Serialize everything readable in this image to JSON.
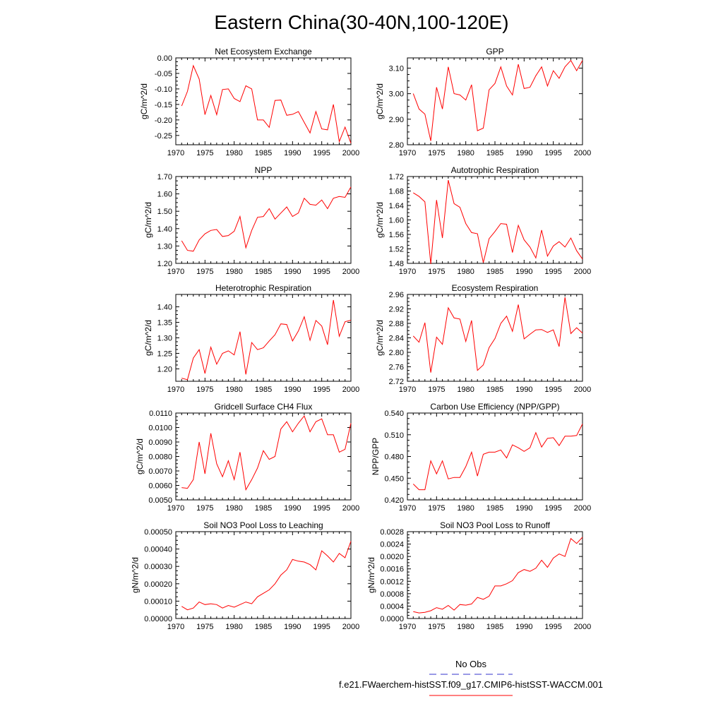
{
  "figure": {
    "title": "Eastern China(30-40N,100-120E)",
    "line_color": "#ff0000",
    "obs_color": "#3333cc",
    "legend": [
      {
        "label": "No Obs",
        "style": "dashed",
        "color": "#3333cc"
      },
      {
        "label": "f.e21.FWaerchem-histSST.f09_g17.CMIP6-histSST-WACCM.001",
        "style": "solid",
        "color": "#ff0000"
      }
    ]
  },
  "chart_data": [
    {
      "type": "line",
      "title": "Net Ecosystem Exchange",
      "ylabel": "gC/m^2/d",
      "xlim": [
        1970,
        2000
      ],
      "ylim": [
        -0.28,
        0.0
      ],
      "xticks": [
        1970,
        1975,
        1980,
        1985,
        1990,
        1995,
        2000
      ],
      "xtick_labels": [
        "1970",
        "1975",
        "1980",
        "1985",
        "1990",
        "1995",
        "2000"
      ],
      "yticks": [
        0.0,
        -0.05,
        -0.1,
        -0.15,
        -0.2,
        -0.25
      ],
      "ytick_labels": [
        "0.00",
        "-0.05",
        "-0.10",
        "-0.15",
        "-0.20",
        "-0.25"
      ],
      "x": [
        1971,
        1972,
        1973,
        1974,
        1975,
        1976,
        1977,
        1978,
        1979,
        1980,
        1981,
        1982,
        1983,
        1984,
        1985,
        1986,
        1987,
        1988,
        1989,
        1990,
        1991,
        1992,
        1993,
        1994,
        1995,
        1996,
        1997,
        1998,
        1999,
        2000
      ],
      "series": [
        {
          "values": [
            -0.155,
            -0.108,
            -0.025,
            -0.068,
            -0.183,
            -0.121,
            -0.183,
            -0.102,
            -0.1,
            -0.131,
            -0.141,
            -0.09,
            -0.1,
            -0.2,
            -0.2,
            -0.224,
            -0.137,
            -0.136,
            -0.185,
            -0.182,
            -0.173,
            -0.208,
            -0.242,
            -0.173,
            -0.229,
            -0.232,
            -0.15,
            -0.27,
            -0.223,
            -0.275
          ]
        }
      ]
    },
    {
      "type": "line",
      "title": "GPP",
      "ylabel": "gC/m^2/d",
      "xlim": [
        1970,
        2000
      ],
      "ylim": [
        2.8,
        3.14
      ],
      "xticks": [
        1970,
        1975,
        1980,
        1985,
        1990,
        1995,
        2000
      ],
      "xtick_labels": [
        "1970",
        "1975",
        "1980",
        "1985",
        "1990",
        "1995",
        "2000"
      ],
      "yticks": [
        2.8,
        2.9,
        3.0,
        3.1
      ],
      "ytick_labels": [
        "2.80",
        "2.90",
        "3.00",
        "3.10"
      ],
      "x": [
        1971,
        1972,
        1973,
        1974,
        1975,
        1976,
        1977,
        1978,
        1979,
        1980,
        1981,
        1982,
        1983,
        1984,
        1985,
        1986,
        1987,
        1988,
        1989,
        1990,
        1991,
        1992,
        1993,
        1994,
        1995,
        1996,
        1997,
        1998,
        1999,
        2000
      ],
      "series": [
        {
          "values": [
            3.0,
            2.94,
            2.92,
            2.815,
            3.025,
            2.94,
            3.105,
            3.0,
            2.995,
            2.975,
            3.035,
            2.855,
            2.865,
            3.015,
            3.04,
            3.105,
            3.03,
            2.995,
            3.115,
            3.02,
            3.025,
            3.07,
            3.105,
            3.03,
            3.09,
            3.06,
            3.105,
            3.13,
            3.09,
            3.13
          ]
        }
      ]
    },
    {
      "type": "line",
      "title": "NPP",
      "ylabel": "gC/m^2/d",
      "xlim": [
        1970,
        2000
      ],
      "ylim": [
        1.2,
        1.7
      ],
      "xticks": [
        1970,
        1975,
        1980,
        1985,
        1990,
        1995,
        2000
      ],
      "xtick_labels": [
        "1970",
        "1975",
        "1980",
        "1985",
        "1990",
        "1995",
        "2000"
      ],
      "yticks": [
        1.2,
        1.3,
        1.4,
        1.5,
        1.6,
        1.7
      ],
      "ytick_labels": [
        "1.20",
        "1.30",
        "1.40",
        "1.50",
        "1.60",
        "1.70"
      ],
      "x": [
        1971,
        1972,
        1973,
        1974,
        1975,
        1976,
        1977,
        1978,
        1979,
        1980,
        1981,
        1982,
        1983,
        1984,
        1985,
        1986,
        1987,
        1988,
        1989,
        1990,
        1991,
        1992,
        1993,
        1994,
        1995,
        1996,
        1997,
        1998,
        1999,
        2000
      ],
      "series": [
        {
          "values": [
            1.33,
            1.275,
            1.27,
            1.335,
            1.37,
            1.39,
            1.395,
            1.355,
            1.36,
            1.385,
            1.47,
            1.29,
            1.39,
            1.465,
            1.47,
            1.515,
            1.455,
            1.49,
            1.525,
            1.47,
            1.49,
            1.575,
            1.54,
            1.535,
            1.565,
            1.515,
            1.575,
            1.585,
            1.58,
            1.64
          ]
        }
      ]
    },
    {
      "type": "line",
      "title": "Autotrophic Respiration",
      "ylabel": "gC/m^2/d",
      "xlim": [
        1970,
        2000
      ],
      "ylim": [
        1.48,
        1.72
      ],
      "xticks": [
        1970,
        1975,
        1980,
        1985,
        1990,
        1995,
        2000
      ],
      "xtick_labels": [
        "1970",
        "1975",
        "1980",
        "1985",
        "1990",
        "1995",
        "2000"
      ],
      "yticks": [
        1.48,
        1.52,
        1.56,
        1.6,
        1.64,
        1.68,
        1.72
      ],
      "ytick_labels": [
        "1.48",
        "1.52",
        "1.56",
        "1.60",
        "1.64",
        "1.68",
        "1.72"
      ],
      "x": [
        1971,
        1972,
        1973,
        1974,
        1975,
        1976,
        1977,
        1978,
        1979,
        1980,
        1981,
        1982,
        1983,
        1984,
        1985,
        1986,
        1987,
        1988,
        1989,
        1990,
        1991,
        1992,
        1993,
        1994,
        1995,
        1996,
        1997,
        1998,
        1999,
        2000
      ],
      "series": [
        {
          "values": [
            1.675,
            1.665,
            1.65,
            1.478,
            1.655,
            1.55,
            1.71,
            1.645,
            1.635,
            1.59,
            1.565,
            1.562,
            1.482,
            1.548,
            1.568,
            1.59,
            1.588,
            1.51,
            1.585,
            1.545,
            1.525,
            1.495,
            1.572,
            1.5,
            1.528,
            1.54,
            1.525,
            1.55,
            1.515,
            1.492
          ]
        }
      ]
    },
    {
      "type": "line",
      "title": "Heterotrophic Respiration",
      "ylabel": "gC/m^2/d",
      "xlim": [
        1970,
        2000
      ],
      "ylim": [
        1.16,
        1.44
      ],
      "xticks": [
        1970,
        1975,
        1980,
        1985,
        1990,
        1995,
        2000
      ],
      "xtick_labels": [
        "1970",
        "1975",
        "1980",
        "1985",
        "1990",
        "1995",
        "2000"
      ],
      "yticks": [
        1.2,
        1.25,
        1.3,
        1.35,
        1.4
      ],
      "ytick_labels": [
        "1.20",
        "1.25",
        "1.30",
        "1.35",
        "1.40"
      ],
      "x": [
        1971,
        1972,
        1973,
        1974,
        1975,
        1976,
        1977,
        1978,
        1979,
        1980,
        1981,
        1982,
        1983,
        1984,
        1985,
        1986,
        1987,
        1988,
        1989,
        1990,
        1991,
        1992,
        1993,
        1994,
        1995,
        1996,
        1997,
        1998,
        1999,
        2000
      ],
      "series": [
        {
          "values": [
            1.17,
            1.165,
            1.235,
            1.262,
            1.185,
            1.27,
            1.215,
            1.25,
            1.258,
            1.245,
            1.32,
            1.182,
            1.285,
            1.262,
            1.268,
            1.29,
            1.31,
            1.345,
            1.343,
            1.29,
            1.322,
            1.368,
            1.292,
            1.356,
            1.338,
            1.278,
            1.422,
            1.305,
            1.352,
            1.357
          ]
        }
      ]
    },
    {
      "type": "line",
      "title": "Ecosystem Respiration",
      "ylabel": "gC/m^2/d",
      "xlim": [
        1970,
        2000
      ],
      "ylim": [
        2.72,
        2.96
      ],
      "xticks": [
        1970,
        1975,
        1980,
        1985,
        1990,
        1995,
        2000
      ],
      "xtick_labels": [
        "1970",
        "1975",
        "1980",
        "1985",
        "1990",
        "1995",
        "2000"
      ],
      "yticks": [
        2.72,
        2.76,
        2.8,
        2.84,
        2.88,
        2.92,
        2.96
      ],
      "ytick_labels": [
        "2.72",
        "2.76",
        "2.80",
        "2.84",
        "2.88",
        "2.92",
        "2.96"
      ],
      "x": [
        1971,
        1972,
        1973,
        1974,
        1975,
        1976,
        1977,
        1978,
        1979,
        1980,
        1981,
        1982,
        1983,
        1984,
        1985,
        1986,
        1987,
        1988,
        1989,
        1990,
        1991,
        1992,
        1993,
        1994,
        1995,
        1996,
        1997,
        1998,
        1999,
        2000
      ],
      "series": [
        {
          "values": [
            2.845,
            2.828,
            2.882,
            2.744,
            2.842,
            2.822,
            2.923,
            2.895,
            2.892,
            2.83,
            2.888,
            2.75,
            2.765,
            2.813,
            2.838,
            2.88,
            2.9,
            2.858,
            2.932,
            2.837,
            2.85,
            2.862,
            2.863,
            2.855,
            2.862,
            2.816,
            2.952,
            2.852,
            2.868,
            2.853
          ]
        }
      ]
    },
    {
      "type": "line",
      "title": "Gridcell Surface CH4 Flux",
      "ylabel": "gC/m^2/d",
      "xlim": [
        1970,
        2000
      ],
      "ylim": [
        0.005,
        0.011
      ],
      "xticks": [
        1970,
        1975,
        1980,
        1985,
        1990,
        1995,
        2000
      ],
      "xtick_labels": [
        "1970",
        "1975",
        "1980",
        "1985",
        "1990",
        "1995",
        "2000"
      ],
      "yticks": [
        0.005,
        0.006,
        0.007,
        0.008,
        0.009,
        0.01,
        0.011
      ],
      "ytick_labels": [
        "0.0050",
        "0.0060",
        "0.0070",
        "0.0080",
        "0.0090",
        "0.0100",
        "0.0110"
      ],
      "x": [
        1971,
        1972,
        1973,
        1974,
        1975,
        1976,
        1977,
        1978,
        1979,
        1980,
        1981,
        1982,
        1983,
        1984,
        1985,
        1986,
        1987,
        1988,
        1989,
        1990,
        1991,
        1992,
        1993,
        1994,
        1995,
        1996,
        1997,
        1998,
        1999,
        2000
      ],
      "series": [
        {
          "values": [
            0.00585,
            0.0058,
            0.0064,
            0.009,
            0.0068,
            0.0096,
            0.0075,
            0.0066,
            0.0077,
            0.0064,
            0.0083,
            0.0057,
            0.0064,
            0.0072,
            0.0084,
            0.0078,
            0.008,
            0.0099,
            0.0104,
            0.0097,
            0.0103,
            0.0108,
            0.0097,
            0.0104,
            0.0106,
            0.0095,
            0.0095,
            0.0083,
            0.0085,
            0.0103
          ]
        }
      ]
    },
    {
      "type": "line",
      "title": "Carbon Use Efficiency (NPP/GPP)",
      "ylabel": "NPP/GPP",
      "xlim": [
        1970,
        2000
      ],
      "ylim": [
        0.42,
        0.54
      ],
      "xticks": [
        1970,
        1975,
        1980,
        1985,
        1990,
        1995,
        2000
      ],
      "xtick_labels": [
        "1970",
        "1975",
        "1980",
        "1985",
        "1990",
        "1995",
        "2000"
      ],
      "yticks": [
        0.42,
        0.45,
        0.48,
        0.51,
        0.54
      ],
      "ytick_labels": [
        "0.420",
        "0.450",
        "0.480",
        "0.510",
        "0.540"
      ],
      "x": [
        1971,
        1972,
        1973,
        1974,
        1975,
        1976,
        1977,
        1978,
        1979,
        1980,
        1981,
        1982,
        1983,
        1984,
        1985,
        1986,
        1987,
        1988,
        1989,
        1990,
        1991,
        1992,
        1993,
        1994,
        1995,
        1996,
        1997,
        1998,
        1999,
        2000
      ],
      "series": [
        {
          "values": [
            0.442,
            0.434,
            0.434,
            0.474,
            0.456,
            0.474,
            0.449,
            0.451,
            0.451,
            0.466,
            0.486,
            0.453,
            0.483,
            0.486,
            0.486,
            0.489,
            0.478,
            0.496,
            0.492,
            0.487,
            0.492,
            0.513,
            0.493,
            0.505,
            0.506,
            0.495,
            0.508,
            0.508,
            0.509,
            0.525
          ]
        }
      ]
    },
    {
      "type": "line",
      "title": "Soil NO3 Pool Loss to Leaching",
      "ylabel": "gN/m^2/d",
      "xlim": [
        1970,
        2000
      ],
      "ylim": [
        0.0,
        0.0005
      ],
      "xticks": [
        1970,
        1975,
        1980,
        1985,
        1990,
        1995,
        2000
      ],
      "xtick_labels": [
        "1970",
        "1975",
        "1980",
        "1985",
        "1990",
        "1995",
        "2000"
      ],
      "yticks": [
        0.0,
        0.0001,
        0.0002,
        0.0003,
        0.0004,
        0.0005
      ],
      "ytick_labels": [
        "0.00000",
        "0.00010",
        "0.00020",
        "0.00030",
        "0.00040",
        "0.00050"
      ],
      "x": [
        1971,
        1972,
        1973,
        1974,
        1975,
        1976,
        1977,
        1978,
        1979,
        1980,
        1981,
        1982,
        1983,
        1984,
        1985,
        1986,
        1987,
        1988,
        1989,
        1990,
        1991,
        1992,
        1993,
        1994,
        1995,
        1996,
        1997,
        1998,
        1999,
        2000
      ],
      "series": [
        {
          "values": [
            7e-05,
            5e-05,
            6e-05,
            9.5e-05,
            8e-05,
            8.5e-05,
            8e-05,
            6e-05,
            7.5e-05,
            6.5e-05,
            8e-05,
            9.5e-05,
            8.5e-05,
            0.000125,
            0.000145,
            0.000165,
            0.0002,
            0.00025,
            0.00028,
            0.00034,
            0.00033,
            0.000325,
            0.00031,
            0.00028,
            0.00039,
            0.00036,
            0.000325,
            0.000375,
            0.00035,
            0.000445
          ]
        }
      ]
    },
    {
      "type": "line",
      "title": "Soil NO3 Pool Loss to Runoff",
      "ylabel": "gN/m^2/d",
      "xlim": [
        1970,
        2000
      ],
      "ylim": [
        0.0,
        0.0028
      ],
      "xticks": [
        1970,
        1975,
        1980,
        1985,
        1990,
        1995,
        2000
      ],
      "xtick_labels": [
        "1970",
        "1975",
        "1980",
        "1985",
        "1990",
        "1995",
        "2000"
      ],
      "yticks": [
        0.0,
        0.0004,
        0.0008,
        0.0012,
        0.0016,
        0.002,
        0.0024,
        0.0028
      ],
      "ytick_labels": [
        "0.0000",
        "0.0004",
        "0.0008",
        "0.0012",
        "0.0016",
        "0.0020",
        "0.0024",
        "0.0028"
      ],
      "x": [
        1971,
        1972,
        1973,
        1974,
        1975,
        1976,
        1977,
        1978,
        1979,
        1980,
        1981,
        1982,
        1983,
        1984,
        1985,
        1986,
        1987,
        1988,
        1989,
        1990,
        1991,
        1992,
        1993,
        1994,
        1995,
        1996,
        1997,
        1998,
        1999,
        2000
      ],
      "series": [
        {
          "values": [
            0.00022,
            0.00018,
            0.0002,
            0.00025,
            0.00035,
            0.0003,
            0.00042,
            0.00027,
            0.00045,
            0.00043,
            0.00047,
            0.00068,
            0.00062,
            0.00072,
            0.00105,
            0.00105,
            0.00112,
            0.00122,
            0.00148,
            0.00158,
            0.00152,
            0.00162,
            0.00188,
            0.00165,
            0.00195,
            0.00208,
            0.002,
            0.00258,
            0.00242,
            0.00262
          ]
        }
      ]
    }
  ]
}
